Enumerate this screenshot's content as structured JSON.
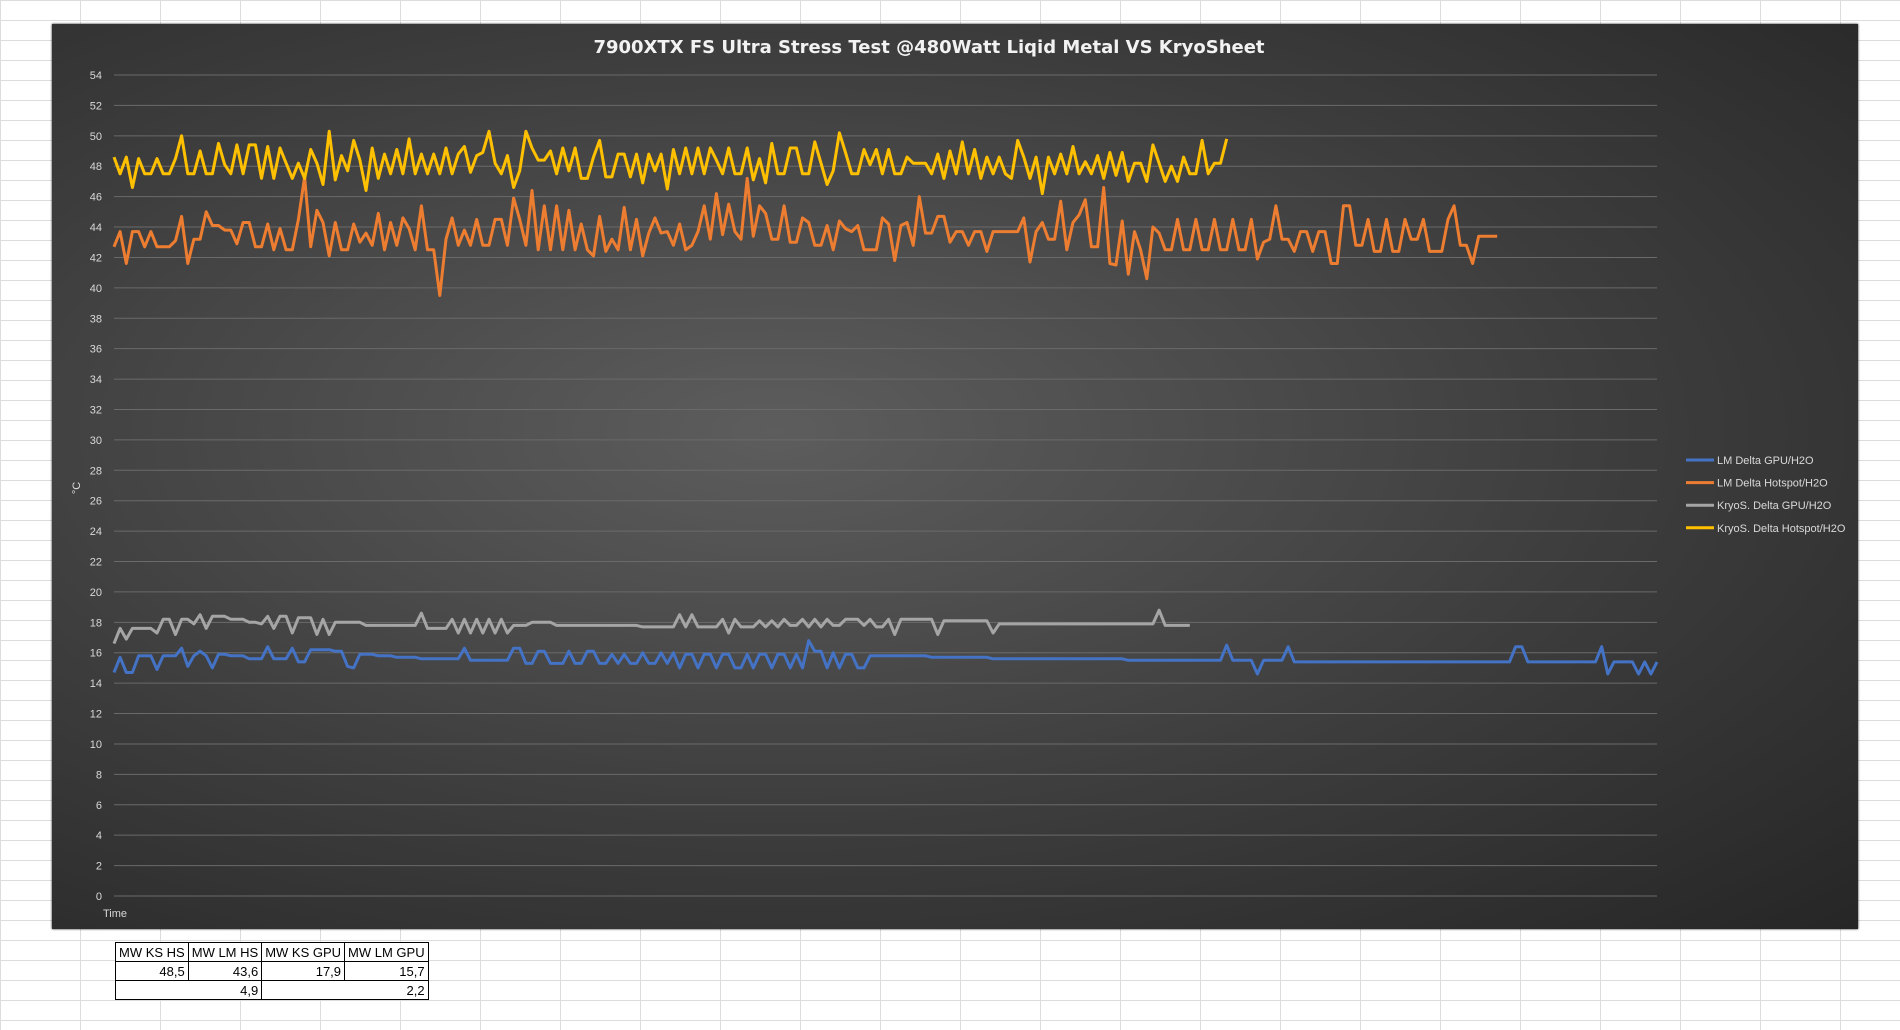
{
  "chart_data": {
    "type": "line",
    "title": "7900XTX FS Ultra Stress Test @480Watt Liqid Metal VS KryoSheet",
    "xlabel": "Time",
    "ylabel": "°C",
    "ylim": [
      0,
      54
    ],
    "yticks": [
      0,
      2,
      4,
      6,
      8,
      10,
      12,
      14,
      16,
      18,
      20,
      22,
      24,
      26,
      28,
      30,
      32,
      34,
      36,
      38,
      40,
      42,
      44,
      46,
      48,
      50,
      52,
      54
    ],
    "grid": true,
    "legend_position": "right",
    "series": [
      {
        "name": "LM Delta GPU/H2O",
        "color": "#4472c4",
        "values": [
          14.7,
          15.7,
          14.7,
          14.7,
          15.8,
          15.8,
          15.8,
          14.9,
          15.8,
          15.8,
          15.8,
          16.3,
          15.1,
          15.8,
          16.1,
          15.8,
          15.0,
          15.9,
          15.9,
          15.8,
          15.8,
          15.8,
          15.6,
          15.6,
          15.6,
          16.4,
          15.6,
          15.6,
          15.6,
          16.3,
          15.4,
          15.4,
          16.2,
          16.2,
          16.2,
          16.2,
          16.1,
          16.1,
          15.1,
          15.0,
          15.9,
          15.9,
          15.9,
          15.8,
          15.8,
          15.8,
          15.7,
          15.7,
          15.7,
          15.7,
          15.6,
          15.6,
          15.6,
          15.6,
          15.6,
          15.6,
          15.6,
          16.3,
          15.5,
          15.5,
          15.5,
          15.5,
          15.5,
          15.5,
          15.5,
          16.3,
          16.3,
          15.3,
          15.3,
          16.1,
          16.1,
          15.3,
          15.3,
          15.3,
          16.1,
          15.3,
          15.3,
          16.1,
          16.1,
          15.3,
          15.3,
          15.9,
          15.3,
          15.9,
          15.3,
          15.3,
          16.0,
          15.3,
          15.3,
          16.0,
          15.3,
          16.0,
          15.0,
          15.9,
          15.9,
          15.0,
          15.9,
          15.9,
          15.0,
          15.9,
          15.9,
          15.0,
          15.0,
          15.9,
          15.0,
          15.9,
          15.9,
          15.0,
          15.9,
          15.9,
          15.0,
          15.9,
          15.0,
          16.8,
          16.1,
          16.1,
          15.0,
          16.0,
          15.0,
          15.9,
          15.9,
          15.0,
          15.0,
          15.8,
          15.8,
          15.8,
          15.8,
          15.8,
          15.8,
          15.8,
          15.8,
          15.8,
          15.8,
          15.7,
          15.7,
          15.7,
          15.7,
          15.7,
          15.7,
          15.7,
          15.7,
          15.7,
          15.7,
          15.6,
          15.6,
          15.6,
          15.6,
          15.6,
          15.6,
          15.6,
          15.6,
          15.6,
          15.6,
          15.6,
          15.6,
          15.6,
          15.6,
          15.6,
          15.6,
          15.6,
          15.6,
          15.6,
          15.6,
          15.6,
          15.6,
          15.5,
          15.5,
          15.5,
          15.5,
          15.5,
          15.5,
          15.5,
          15.5,
          15.5,
          15.5,
          15.5,
          15.5,
          15.5,
          15.5,
          15.5,
          15.5,
          16.5,
          15.5,
          15.5,
          15.5,
          15.5,
          14.6,
          15.5,
          15.5,
          15.5,
          15.5,
          16.4,
          15.4,
          15.4,
          15.4,
          15.4,
          15.4,
          15.4,
          15.4,
          15.4,
          15.4,
          15.4,
          15.4,
          15.4,
          15.4,
          15.4,
          15.4,
          15.4,
          15.4,
          15.4,
          15.4,
          15.4,
          15.4,
          15.4,
          15.4,
          15.4,
          15.4,
          15.4,
          15.4,
          15.4,
          15.4,
          15.4,
          15.4,
          15.4,
          15.4,
          15.4,
          15.4,
          15.4,
          16.4,
          16.4,
          15.4,
          15.4,
          15.4,
          15.4,
          15.4,
          15.4,
          15.4,
          15.4,
          15.4,
          15.4,
          15.4,
          15.4,
          16.4,
          14.6,
          15.4,
          15.4,
          15.4,
          15.4,
          14.6,
          15.4,
          14.6,
          15.4
        ]
      },
      {
        "name": "LM Delta Hotspot/H2O",
        "color": "#ed7d31",
        "values": [
          42.7,
          43.7,
          41.6,
          43.7,
          43.7,
          42.7,
          43.7,
          42.7,
          42.7,
          42.7,
          43.1,
          44.7,
          41.6,
          43.2,
          43.2,
          45.0,
          44.1,
          44.1,
          43.8,
          43.8,
          42.9,
          44.3,
          44.3,
          42.7,
          42.7,
          44.2,
          42.5,
          43.9,
          42.5,
          42.5,
          44.5,
          47.3,
          42.7,
          45.1,
          44.3,
          42.1,
          44.3,
          42.5,
          42.5,
          44.2,
          43.0,
          43.6,
          42.8,
          44.9,
          42.5,
          44.3,
          42.8,
          44.6,
          43.9,
          42.5,
          45.4,
          42.5,
          42.5,
          39.5,
          43.2,
          44.6,
          42.8,
          43.8,
          42.8,
          44.5,
          42.8,
          42.8,
          44.5,
          44.5,
          42.8,
          45.9,
          44.5,
          42.8,
          46.4,
          42.5,
          45.4,
          42.5,
          45.4,
          42.5,
          45.1,
          42.5,
          44.2,
          42.5,
          42.1,
          44.7,
          42.4,
          43.2,
          42.5,
          45.3,
          42.5,
          44.5,
          42.1,
          43.6,
          44.6,
          43.6,
          43.7,
          42.8,
          44.2,
          42.5,
          42.8,
          43.7,
          45.4,
          43.2,
          46.2,
          43.5,
          45.5,
          43.7,
          43.2,
          47.2,
          43.4,
          45.4,
          44.9,
          43.2,
          43.2,
          45.4,
          43.0,
          43.0,
          44.6,
          44.3,
          42.8,
          42.8,
          44.1,
          42.5,
          44.4,
          43.9,
          43.7,
          44.1,
          42.5,
          42.5,
          42.5,
          44.6,
          44.2,
          41.8,
          44.1,
          44.3,
          42.8,
          46.0,
          43.6,
          43.6,
          44.7,
          44.7,
          43.0,
          43.7,
          43.7,
          42.8,
          43.7,
          43.7,
          42.4,
          43.7,
          43.7,
          43.7,
          43.7,
          43.7,
          44.6,
          41.7,
          43.7,
          44.3,
          43.2,
          43.2,
          45.7,
          42.5,
          44.3,
          44.8,
          45.8,
          42.7,
          42.7,
          46.6,
          41.6,
          41.5,
          44.4,
          40.9,
          43.7,
          42.5,
          40.6,
          44.0,
          43.6,
          42.5,
          42.5,
          44.5,
          42.5,
          42.5,
          44.5,
          42.5,
          42.5,
          44.5,
          42.5,
          42.5,
          44.5,
          42.5,
          42.5,
          44.5,
          41.9,
          43.0,
          43.2,
          45.4,
          43.2,
          43.2,
          42.4,
          43.7,
          43.7,
          42.4,
          43.7,
          43.7,
          41.6,
          41.6,
          45.4,
          45.4,
          42.8,
          42.8,
          44.5,
          42.4,
          42.4,
          44.5,
          42.4,
          42.4,
          44.5,
          43.2,
          43.2,
          44.5,
          42.4,
          42.4,
          42.4,
          44.5,
          45.4,
          42.8,
          42.8,
          41.6,
          43.4,
          43.4,
          43.4,
          43.4
        ]
      },
      {
        "name": "KryoS. Delta GPU/H2O",
        "color": "#a5a5a5",
        "values": [
          16.6,
          17.6,
          16.9,
          17.6,
          17.6,
          17.6,
          17.6,
          17.3,
          18.2,
          18.2,
          17.2,
          18.2,
          18.2,
          17.9,
          18.5,
          17.6,
          18.4,
          18.4,
          18.4,
          18.2,
          18.2,
          18.2,
          18.0,
          18.0,
          17.9,
          18.4,
          17.6,
          18.4,
          18.4,
          17.3,
          18.3,
          18.3,
          18.3,
          17.2,
          18.2,
          17.2,
          18.0,
          18.0,
          18.0,
          18.0,
          18.0,
          17.8,
          17.8,
          17.8,
          17.8,
          17.8,
          17.8,
          17.8,
          17.8,
          17.8,
          18.6,
          17.6,
          17.6,
          17.6,
          17.6,
          18.2,
          17.3,
          18.2,
          17.3,
          18.2,
          17.3,
          18.2,
          17.3,
          18.2,
          17.3,
          17.8,
          17.8,
          17.8,
          18.0,
          18.0,
          18.0,
          18.0,
          17.8,
          17.8,
          17.8,
          17.8,
          17.8,
          17.8,
          17.8,
          17.8,
          17.8,
          17.8,
          17.8,
          17.8,
          17.8,
          17.8,
          17.7,
          17.7,
          17.7,
          17.7,
          17.7,
          17.7,
          18.5,
          17.7,
          18.5,
          17.7,
          17.7,
          17.7,
          17.7,
          18.2,
          17.3,
          18.2,
          17.7,
          17.7,
          17.7,
          18.1,
          17.7,
          18.1,
          17.7,
          18.2,
          17.8,
          17.8,
          18.2,
          17.7,
          18.2,
          17.7,
          18.2,
          17.8,
          17.8,
          18.2,
          18.2,
          18.2,
          17.8,
          18.2,
          17.7,
          17.7,
          18.2,
          17.2,
          18.2,
          18.2,
          18.2,
          18.2,
          18.2,
          18.2,
          17.2,
          18.1,
          18.1,
          18.1,
          18.1,
          18.1,
          18.1,
          18.1,
          18.1,
          17.3,
          17.9,
          17.9,
          17.9,
          17.9,
          17.9,
          17.9,
          17.9,
          17.9,
          17.9,
          17.9,
          17.9,
          17.9,
          17.9,
          17.9,
          17.9,
          17.9,
          17.9,
          17.9,
          17.9,
          17.9,
          17.9,
          17.9,
          17.9,
          17.9,
          17.9,
          17.9,
          18.8,
          17.8,
          17.8,
          17.8,
          17.8,
          17.8
        ]
      },
      {
        "name": "KryoS. Delta Hotspot/H2O",
        "color": "#ffc000",
        "values": [
          48.6,
          47.5,
          48.6,
          46.6,
          48.5,
          47.5,
          47.5,
          48.5,
          47.5,
          47.5,
          48.5,
          50.0,
          47.5,
          47.5,
          49.0,
          47.5,
          47.5,
          49.5,
          48.1,
          47.5,
          49.4,
          47.5,
          49.4,
          49.4,
          47.2,
          49.3,
          47.2,
          49.2,
          48.2,
          47.2,
          48.2,
          47.2,
          49.1,
          48.2,
          46.8,
          50.3,
          47.1,
          48.7,
          47.7,
          49.7,
          48.4,
          46.4,
          49.2,
          47.2,
          48.8,
          47.5,
          49.1,
          47.5,
          49.8,
          47.5,
          48.8,
          47.5,
          48.8,
          47.5,
          49.2,
          47.5,
          48.8,
          49.3,
          47.6,
          48.7,
          48.9,
          50.3,
          48.2,
          47.5,
          48.7,
          46.6,
          47.7,
          50.3,
          49.2,
          48.4,
          48.4,
          49.0,
          47.5,
          49.2,
          47.7,
          49.2,
          47.2,
          47.2,
          48.6,
          49.7,
          47.3,
          47.3,
          48.8,
          48.8,
          47.3,
          48.8,
          46.9,
          48.8,
          47.7,
          48.8,
          46.5,
          49.1,
          47.5,
          49.2,
          47.5,
          49.2,
          47.5,
          49.2,
          48.4,
          47.5,
          49.2,
          47.5,
          47.5,
          49.2,
          47.1,
          48.5,
          46.9,
          49.5,
          47.5,
          47.5,
          49.2,
          49.2,
          47.5,
          47.5,
          49.6,
          48.2,
          46.8,
          47.7,
          50.2,
          48.9,
          47.5,
          47.5,
          49.1,
          48.1,
          49.1,
          47.5,
          49.1,
          47.5,
          47.5,
          48.6,
          48.2,
          48.2,
          48.2,
          47.5,
          48.8,
          47.2,
          49.0,
          47.5,
          49.6,
          47.5,
          49.1,
          47.2,
          48.6,
          47.5,
          48.6,
          47.5,
          47.2,
          49.7,
          48.6,
          47.2,
          48.6,
          46.2,
          48.6,
          47.5,
          48.8,
          47.5,
          49.3,
          47.5,
          48.3,
          47.5,
          48.7,
          47.2,
          48.9,
          47.4,
          48.9,
          47.0,
          48.2,
          48.2,
          47.0,
          49.4,
          48.2,
          47.0,
          48.0,
          47.0,
          48.6,
          47.5,
          47.5,
          49.7,
          47.5,
          48.2,
          48.2,
          49.8
        ]
      }
    ]
  },
  "summary_table": {
    "headers": [
      "MW KS HS",
      "MW LM HS",
      "MW KS GPU",
      "MW LM GPU"
    ],
    "values": [
      "48,5",
      "43,6",
      "17,9",
      "15,7"
    ],
    "differences": [
      "4,9",
      "2,2"
    ]
  }
}
